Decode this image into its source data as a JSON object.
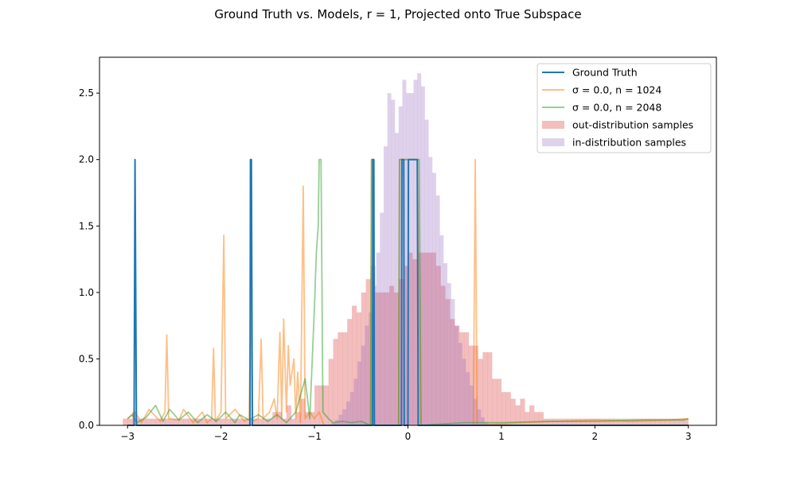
{
  "chart_data": {
    "type": "line",
    "title": "Ground Truth vs. Models, r = 1, Projected onto True Subspace",
    "xlim": [
      -3.3,
      3.3
    ],
    "ylim": [
      0,
      2.77
    ],
    "x_ticks": [
      -3,
      -2,
      -1,
      0,
      1,
      2,
      3
    ],
    "y_ticks": [
      0.0,
      0.5,
      1.0,
      1.5,
      2.0,
      2.5
    ],
    "legend_position": "top-right",
    "series": [
      {
        "name": "Ground Truth",
        "kind": "line",
        "color": "#1f77b4",
        "opacity": 1.0,
        "points": [
          [
            -3.0,
            0
          ],
          [
            -2.93,
            0
          ],
          [
            -2.92,
            2.0
          ],
          [
            -2.905,
            0
          ],
          [
            -1.69,
            0
          ],
          [
            -1.685,
            2.0
          ],
          [
            -1.675,
            2.0
          ],
          [
            -1.665,
            0
          ],
          [
            -0.38,
            0
          ],
          [
            -0.375,
            2.0
          ],
          [
            -0.365,
            2.0
          ],
          [
            -0.36,
            0
          ],
          [
            -0.07,
            0
          ],
          [
            -0.065,
            2.0
          ],
          [
            -0.045,
            2.0
          ],
          [
            -0.04,
            0
          ],
          [
            0.0,
            0
          ],
          [
            0.005,
            2.0
          ],
          [
            0.1,
            2.0
          ],
          [
            0.11,
            0
          ],
          [
            3.0,
            0
          ]
        ]
      },
      {
        "name": "σ = 0.0, n = 1024",
        "kind": "line",
        "color": "#ff7f0e",
        "opacity": 0.5,
        "points": [
          [
            -3.0,
            0.05
          ],
          [
            -2.92,
            0.1
          ],
          [
            -2.85,
            0.02
          ],
          [
            -2.77,
            0.12
          ],
          [
            -2.65,
            0.03
          ],
          [
            -2.6,
            0.1
          ],
          [
            -2.58,
            0.68
          ],
          [
            -2.56,
            0.05
          ],
          [
            -2.45,
            0.04
          ],
          [
            -2.4,
            0.12
          ],
          [
            -2.3,
            0.02
          ],
          [
            -2.2,
            0.1
          ],
          [
            -2.15,
            0.02
          ],
          [
            -2.1,
            0.05
          ],
          [
            -2.08,
            0.58
          ],
          [
            -2.06,
            0.03
          ],
          [
            -2.0,
            0.1
          ],
          [
            -1.97,
            1.43
          ],
          [
            -1.95,
            0.05
          ],
          [
            -1.85,
            0.12
          ],
          [
            -1.75,
            0.03
          ],
          [
            -1.7,
            0.05
          ],
          [
            -1.68,
            1.0
          ],
          [
            -1.66,
            0.03
          ],
          [
            -1.6,
            0.05
          ],
          [
            -1.57,
            0.65
          ],
          [
            -1.55,
            0.05
          ],
          [
            -1.48,
            0.1
          ],
          [
            -1.43,
            0.2
          ],
          [
            -1.4,
            0.05
          ],
          [
            -1.37,
            0.7
          ],
          [
            -1.35,
            0.05
          ],
          [
            -1.33,
            0.8
          ],
          [
            -1.3,
            0.1
          ],
          [
            -1.28,
            0.6
          ],
          [
            -1.26,
            0.3
          ],
          [
            -1.22,
            0.5
          ],
          [
            -1.2,
            0.05
          ],
          [
            -1.18,
            0.4
          ],
          [
            -1.15,
            0.02
          ],
          [
            -1.12,
            1.8
          ],
          [
            -1.1,
            0.05
          ],
          [
            -1.05,
            0.1
          ],
          [
            -1.0,
            0.05
          ],
          [
            -0.95,
            0.1
          ],
          [
            -0.9,
            0.0
          ],
          [
            -0.8,
            0.0
          ],
          [
            -0.7,
            0.0
          ],
          [
            -0.4,
            0.0
          ],
          [
            -0.39,
            2.0
          ],
          [
            -0.37,
            2.0
          ],
          [
            -0.36,
            0.0
          ],
          [
            -0.1,
            0.0
          ],
          [
            -0.09,
            2.0
          ],
          [
            0.1,
            2.0
          ],
          [
            0.14,
            0.0
          ],
          [
            0.7,
            0.0
          ],
          [
            0.72,
            2.0
          ],
          [
            0.74,
            0.0
          ],
          [
            1.2,
            0.02
          ],
          [
            1.6,
            0.03
          ],
          [
            2.0,
            0.04
          ],
          [
            2.4,
            0.03
          ],
          [
            2.8,
            0.04
          ],
          [
            3.0,
            0.05
          ]
        ]
      },
      {
        "name": "σ = 0.0, n = 2048",
        "kind": "line",
        "color": "#2ca02c",
        "opacity": 0.5,
        "points": [
          [
            -3.0,
            0.05
          ],
          [
            -2.95,
            0.08
          ],
          [
            -2.9,
            0.02
          ],
          [
            -2.8,
            0.06
          ],
          [
            -2.7,
            0.15
          ],
          [
            -2.62,
            0.03
          ],
          [
            -2.55,
            0.12
          ],
          [
            -2.45,
            0.04
          ],
          [
            -2.35,
            0.1
          ],
          [
            -2.25,
            0.02
          ],
          [
            -2.15,
            0.08
          ],
          [
            -2.05,
            0.03
          ],
          [
            -1.95,
            0.1
          ],
          [
            -1.85,
            0.02
          ],
          [
            -1.8,
            0.08
          ],
          [
            -1.7,
            0.04
          ],
          [
            -1.6,
            0.08
          ],
          [
            -1.5,
            0.03
          ],
          [
            -1.4,
            0.08
          ],
          [
            -1.3,
            0.02
          ],
          [
            -1.2,
            0.1
          ],
          [
            -1.1,
            0.35
          ],
          [
            -1.05,
            0.05
          ],
          [
            -1.0,
            0.9
          ],
          [
            -0.98,
            1.3
          ],
          [
            -0.96,
            1.5
          ],
          [
            -0.95,
            2.0
          ],
          [
            -0.93,
            2.0
          ],
          [
            -0.91,
            0.1
          ],
          [
            -0.85,
            0.05
          ],
          [
            -0.8,
            0.02
          ],
          [
            -0.7,
            0.03
          ],
          [
            -0.6,
            0.02
          ],
          [
            -0.5,
            0.03
          ],
          [
            -0.4,
            0.0
          ],
          [
            -0.39,
            2.0
          ],
          [
            -0.37,
            2.0
          ],
          [
            -0.36,
            0.0
          ],
          [
            -0.1,
            0.0
          ],
          [
            -0.09,
            2.0
          ],
          [
            0.12,
            2.0
          ],
          [
            0.14,
            0.0
          ],
          [
            0.6,
            0.02
          ],
          [
            1.0,
            0.02
          ],
          [
            1.5,
            0.03
          ],
          [
            2.0,
            0.03
          ],
          [
            2.5,
            0.04
          ],
          [
            2.95,
            0.04
          ],
          [
            3.0,
            0.05
          ]
        ]
      },
      {
        "name": "out-distribution samples",
        "kind": "histogram",
        "color": "#d62728",
        "opacity": 0.3,
        "bin_width": 0.05,
        "bins": [
          [
            -3.05,
            0.05
          ],
          [
            -3.0,
            0.05
          ],
          [
            -2.95,
            0.1
          ],
          [
            -2.9,
            0.05
          ],
          [
            -2.85,
            0.05
          ],
          [
            -2.8,
            0.05
          ],
          [
            -2.75,
            0.05
          ],
          [
            -2.7,
            0.05
          ],
          [
            -2.65,
            0.05
          ],
          [
            -2.6,
            0.05
          ],
          [
            -2.55,
            0.05
          ],
          [
            -2.5,
            0.05
          ],
          [
            -2.45,
            0.05
          ],
          [
            -2.4,
            0.05
          ],
          [
            -2.35,
            0.05
          ],
          [
            -2.3,
            0.05
          ],
          [
            -2.25,
            0.05
          ],
          [
            -2.2,
            0.05
          ],
          [
            -2.15,
            0.05
          ],
          [
            -2.1,
            0.05
          ],
          [
            -2.05,
            0.05
          ],
          [
            -2.0,
            0.05
          ],
          [
            -1.95,
            0.05
          ],
          [
            -1.9,
            0.05
          ],
          [
            -1.85,
            0.05
          ],
          [
            -1.8,
            0.05
          ],
          [
            -1.75,
            0.05
          ],
          [
            -1.7,
            0.05
          ],
          [
            -1.65,
            0.05
          ],
          [
            -1.6,
            0.05
          ],
          [
            -1.55,
            0.05
          ],
          [
            -1.5,
            0.05
          ],
          [
            -1.45,
            0.1
          ],
          [
            -1.4,
            0.1
          ],
          [
            -1.35,
            0.05
          ],
          [
            -1.3,
            0.15
          ],
          [
            -1.25,
            0.05
          ],
          [
            -1.2,
            0.1
          ],
          [
            -1.15,
            0.2
          ],
          [
            -1.1,
            0.1
          ],
          [
            -1.05,
            0.1
          ],
          [
            -1.0,
            0.3
          ],
          [
            -0.95,
            0.3
          ],
          [
            -0.9,
            0.3
          ],
          [
            -0.85,
            0.5
          ],
          [
            -0.8,
            0.65
          ],
          [
            -0.75,
            0.7
          ],
          [
            -0.7,
            0.7
          ],
          [
            -0.65,
            0.8
          ],
          [
            -0.6,
            0.9
          ],
          [
            -0.55,
            0.85
          ],
          [
            -0.5,
            1.0
          ],
          [
            -0.45,
            1.1
          ],
          [
            -0.4,
            1.2
          ],
          [
            -0.35,
            1.0
          ],
          [
            -0.3,
            1.0
          ],
          [
            -0.25,
            1.0
          ],
          [
            -0.2,
            1.05
          ],
          [
            -0.15,
            1.0
          ],
          [
            -0.1,
            1.1
          ],
          [
            -0.05,
            1.2
          ],
          [
            0.0,
            1.3
          ],
          [
            0.05,
            1.25
          ],
          [
            0.1,
            1.3
          ],
          [
            0.15,
            1.3
          ],
          [
            0.2,
            1.3
          ],
          [
            0.25,
            1.3
          ],
          [
            0.3,
            1.2
          ],
          [
            0.35,
            1.05
          ],
          [
            0.4,
            0.95
          ],
          [
            0.45,
            0.8
          ],
          [
            0.5,
            0.75
          ],
          [
            0.55,
            0.7
          ],
          [
            0.6,
            0.7
          ],
          [
            0.65,
            0.6
          ],
          [
            0.7,
            0.6
          ],
          [
            0.75,
            0.5
          ],
          [
            0.8,
            0.55
          ],
          [
            0.85,
            0.55
          ],
          [
            0.9,
            0.35
          ],
          [
            0.95,
            0.35
          ],
          [
            1.0,
            0.25
          ],
          [
            1.05,
            0.25
          ],
          [
            1.1,
            0.2
          ],
          [
            1.15,
            0.15
          ],
          [
            1.2,
            0.2
          ],
          [
            1.25,
            0.1
          ],
          [
            1.3,
            0.15
          ],
          [
            1.35,
            0.1
          ],
          [
            1.4,
            0.1
          ],
          [
            1.45,
            0.05
          ],
          [
            1.5,
            0.05
          ],
          [
            1.55,
            0.05
          ],
          [
            1.6,
            0.05
          ],
          [
            1.65,
            0.05
          ],
          [
            1.7,
            0.05
          ],
          [
            1.75,
            0.05
          ],
          [
            1.8,
            0.05
          ],
          [
            1.85,
            0.05
          ],
          [
            1.9,
            0.05
          ],
          [
            1.95,
            0.05
          ],
          [
            2.0,
            0.05
          ],
          [
            2.05,
            0.05
          ],
          [
            2.1,
            0.05
          ],
          [
            2.15,
            0.05
          ],
          [
            2.2,
            0.05
          ],
          [
            2.25,
            0.05
          ],
          [
            2.3,
            0.05
          ],
          [
            2.35,
            0.05
          ],
          [
            2.4,
            0.05
          ],
          [
            2.45,
            0.05
          ],
          [
            2.5,
            0.05
          ],
          [
            2.55,
            0.05
          ],
          [
            2.6,
            0.05
          ],
          [
            2.65,
            0.05
          ],
          [
            2.7,
            0.05
          ],
          [
            2.75,
            0.05
          ],
          [
            2.8,
            0.05
          ],
          [
            2.85,
            0.05
          ],
          [
            2.9,
            0.05
          ],
          [
            2.95,
            0.05
          ]
        ]
      },
      {
        "name": "in-distribution samples",
        "kind": "histogram",
        "color": "#9467bd",
        "opacity": 0.3,
        "bin_width": 0.04,
        "bins": [
          [
            -0.82,
            0.02
          ],
          [
            -0.78,
            0.04
          ],
          [
            -0.74,
            0.08
          ],
          [
            -0.7,
            0.12
          ],
          [
            -0.66,
            0.18
          ],
          [
            -0.62,
            0.25
          ],
          [
            -0.58,
            0.35
          ],
          [
            -0.54,
            0.48
          ],
          [
            -0.5,
            0.6
          ],
          [
            -0.46,
            0.75
          ],
          [
            -0.42,
            0.85
          ],
          [
            -0.38,
            1.05
          ],
          [
            -0.34,
            1.3
          ],
          [
            -0.3,
            1.6
          ],
          [
            -0.26,
            2.1
          ],
          [
            -0.22,
            2.5
          ],
          [
            -0.18,
            2.45
          ],
          [
            -0.14,
            2.2
          ],
          [
            -0.1,
            2.4
          ],
          [
            -0.06,
            2.6
          ],
          [
            -0.02,
            2.5
          ],
          [
            0.02,
            2.5
          ],
          [
            0.06,
            2.6
          ],
          [
            0.1,
            2.65
          ],
          [
            0.14,
            2.55
          ],
          [
            0.18,
            2.3
          ],
          [
            0.22,
            2.02
          ],
          [
            0.26,
            1.9
          ],
          [
            0.3,
            1.73
          ],
          [
            0.34,
            1.43
          ],
          [
            0.38,
            1.22
          ],
          [
            0.42,
            1.07
          ],
          [
            0.46,
            0.95
          ],
          [
            0.5,
            0.75
          ],
          [
            0.54,
            0.62
          ],
          [
            0.58,
            0.5
          ],
          [
            0.62,
            0.4
          ],
          [
            0.66,
            0.3
          ],
          [
            0.7,
            0.2
          ],
          [
            0.74,
            0.12
          ],
          [
            0.78,
            0.06
          ],
          [
            0.82,
            0.02
          ]
        ]
      }
    ]
  }
}
